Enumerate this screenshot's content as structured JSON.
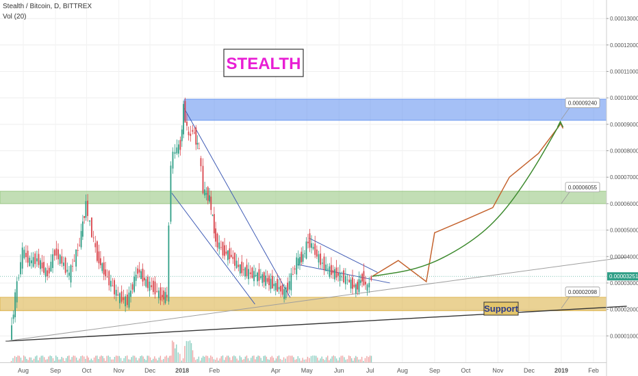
{
  "header": {
    "symbol_line": "Stealth / Bitcoin, D, BITTREX",
    "volume_line": "Vol (20)"
  },
  "banner": "STEALTH",
  "support_label": "Support",
  "chart_data": {
    "type": "candlestick",
    "title": "Stealth / Bitcoin, D, BITTREX",
    "ylim": [
      0.0,
      0.000137
    ],
    "y_ticks": [
      "0.00001000",
      "0.00002000",
      "0.00003000",
      "0.00004000",
      "0.00005000",
      "0.00006000",
      "0.00007000",
      "0.00008000",
      "0.00009000",
      "0.00010000",
      "0.00011000",
      "0.00012000",
      "0.00013000"
    ],
    "x_ticks": [
      "Aug",
      "Sep",
      "Oct",
      "Nov",
      "Dec",
      "2018",
      "Feb",
      "Apr",
      "May",
      "Jun",
      "Jul",
      "Aug",
      "Sep",
      "Oct",
      "Nov",
      "Dec",
      "2019",
      "Feb"
    ],
    "bold_x_ticks": [
      "2018",
      "2019"
    ],
    "current_price": "0.00003251",
    "price_path": [
      {
        "t": "2017-07-20",
        "v": 8.5e-06
      },
      {
        "t": "2017-07-25",
        "v": 2.5e-05
      },
      {
        "t": "2017-08-01",
        "v": 4.2e-05
      },
      {
        "t": "2017-08-08",
        "v": 3.8e-05
      },
      {
        "t": "2017-08-15",
        "v": 3.9e-05
      },
      {
        "t": "2017-08-25",
        "v": 3.3e-05
      },
      {
        "t": "2017-09-01",
        "v": 4.2e-05
      },
      {
        "t": "2017-09-08",
        "v": 3.8e-05
      },
      {
        "t": "2017-09-15",
        "v": 3.3e-05
      },
      {
        "t": "2017-09-25",
        "v": 4.5e-05
      },
      {
        "t": "2017-10-01",
        "v": 6e-05
      },
      {
        "t": "2017-10-05",
        "v": 5.2e-05
      },
      {
        "t": "2017-10-12",
        "v": 4e-05
      },
      {
        "t": "2017-10-20",
        "v": 3.3e-05
      },
      {
        "t": "2017-11-01",
        "v": 2.5e-05
      },
      {
        "t": "2017-11-10",
        "v": 2.3e-05
      },
      {
        "t": "2017-11-20",
        "v": 3.5e-05
      },
      {
        "t": "2017-11-28",
        "v": 3e-05
      },
      {
        "t": "2017-12-05",
        "v": 2.8e-05
      },
      {
        "t": "2017-12-12",
        "v": 2.5e-05
      },
      {
        "t": "2017-12-18",
        "v": 2.5e-05
      },
      {
        "t": "2017-12-22",
        "v": 7.6e-05
      },
      {
        "t": "2017-12-26",
        "v": 8e-05
      },
      {
        "t": "2017-12-31",
        "v": 8.2e-05
      },
      {
        "t": "2018-01-03",
        "v": 9.6e-05
      },
      {
        "t": "2018-01-08",
        "v": 8.5e-05
      },
      {
        "t": "2018-01-12",
        "v": 8.8e-05
      },
      {
        "t": "2018-01-18",
        "v": 8e-05
      },
      {
        "t": "2018-01-22",
        "v": 6.5e-05
      },
      {
        "t": "2018-01-28",
        "v": 6.2e-05
      },
      {
        "t": "2018-02-03",
        "v": 4.6e-05
      },
      {
        "t": "2018-02-10",
        "v": 4.2e-05
      },
      {
        "t": "2018-02-18",
        "v": 4e-05
      },
      {
        "t": "2018-02-25",
        "v": 3.6e-05
      },
      {
        "t": "2018-03-05",
        "v": 3.4e-05
      },
      {
        "t": "2018-03-12",
        "v": 3.3e-05
      },
      {
        "t": "2018-03-20",
        "v": 3.2e-05
      },
      {
        "t": "2018-03-28",
        "v": 3e-05
      },
      {
        "t": "2018-04-05",
        "v": 2.8e-05
      },
      {
        "t": "2018-04-10",
        "v": 2.6e-05
      },
      {
        "t": "2018-04-15",
        "v": 3e-05
      },
      {
        "t": "2018-04-22",
        "v": 3.8e-05
      },
      {
        "t": "2018-04-28",
        "v": 4e-05
      },
      {
        "t": "2018-05-03",
        "v": 4.6e-05
      },
      {
        "t": "2018-05-08",
        "v": 4.3e-05
      },
      {
        "t": "2018-05-15",
        "v": 3.8e-05
      },
      {
        "t": "2018-05-22",
        "v": 3.5e-05
      },
      {
        "t": "2018-06-01",
        "v": 3.3e-05
      },
      {
        "t": "2018-06-10",
        "v": 3.1e-05
      },
      {
        "t": "2018-06-18",
        "v": 2.8e-05
      },
      {
        "t": "2018-06-24",
        "v": 3.2e-05
      },
      {
        "t": "2018-06-29",
        "v": 2.8e-05
      },
      {
        "t": "2018-07-03",
        "v": 3.25e-05
      }
    ],
    "zones": [
      {
        "name": "resistance-top",
        "from": 9.15e-05,
        "to": 9.95e-05,
        "color": "#5b8def"
      },
      {
        "name": "resistance-mid",
        "from": 6e-05,
        "to": 6.47e-05,
        "color": "#8fc278"
      },
      {
        "name": "support",
        "from": 1.95e-05,
        "to": 2.46e-05,
        "color": "#d9ad3c"
      }
    ],
    "callouts": [
      {
        "text": "0.00009240",
        "value": 9.24e-05
      },
      {
        "text": "0.00006055",
        "value": 6.055e-05
      },
      {
        "text": "0.00002098",
        "value": 2.098e-05
      }
    ],
    "trend_lines": [
      {
        "name": "long-support-black",
        "color": "#333333",
        "points": [
          {
            "t": "2017-07-15",
            "v": 8e-06
          },
          {
            "t": "2019-03-05",
            "v": 2.12e-05
          }
        ]
      },
      {
        "name": "long-support-gray",
        "color": "#9e9e9e",
        "points": [
          {
            "t": "2017-07-15",
            "v": 8e-06
          },
          {
            "t": "2019-03-05",
            "v": 3.98e-05
          }
        ]
      },
      {
        "name": "wedge-upper-1",
        "color": "#3f5bb5",
        "points": [
          {
            "t": "2018-01-03",
            "v": 9.6e-05
          },
          {
            "t": "2018-04-15",
            "v": 2.45e-05
          }
        ]
      },
      {
        "name": "wedge-lower-1",
        "color": "#3f5bb5",
        "points": [
          {
            "t": "2017-12-22",
            "v": 6.4e-05
          },
          {
            "t": "2018-03-12",
            "v": 2.2e-05
          }
        ]
      },
      {
        "name": "wedge-upper-2",
        "color": "#3f5bb5",
        "points": [
          {
            "t": "2018-05-03",
            "v": 4.7e-05
          },
          {
            "t": "2018-07-08",
            "v": 3.4e-05
          }
        ]
      },
      {
        "name": "wedge-lower-2",
        "color": "#3f5bb5",
        "points": [
          {
            "t": "2018-04-22",
            "v": 3.7e-05
          },
          {
            "t": "2018-07-20",
            "v": 3e-05
          }
        ]
      }
    ],
    "projections": [
      {
        "name": "orange-path",
        "color": "#c4622d",
        "points": [
          {
            "t": "2018-07-03",
            "v": 3.25e-05
          },
          {
            "t": "2018-07-28",
            "v": 3.85e-05
          },
          {
            "t": "2018-08-24",
            "v": 3.05e-05
          },
          {
            "t": "2018-09-01",
            "v": 4.9e-05
          },
          {
            "t": "2018-10-01",
            "v": 5.4e-05
          },
          {
            "t": "2018-10-27",
            "v": 5.85e-05
          },
          {
            "t": "2018-11-12",
            "v": 7e-05
          },
          {
            "t": "2018-12-10",
            "v": 7.9e-05
          },
          {
            "t": "2018-12-31",
            "v": 9e-05
          }
        ]
      },
      {
        "name": "green-curve",
        "color": "#3d8a2e",
        "points": [
          {
            "t": "2018-07-03",
            "v": 3.25e-05
          },
          {
            "t": "2018-08-20",
            "v": 3.55e-05
          },
          {
            "t": "2018-10-01",
            "v": 4.4e-05
          },
          {
            "t": "2018-11-01",
            "v": 5.4e-05
          },
          {
            "t": "2018-12-01",
            "v": 7e-05
          },
          {
            "t": "2018-12-31",
            "v": 9.05e-05
          }
        ]
      }
    ],
    "grid": true,
    "legend": "none"
  }
}
